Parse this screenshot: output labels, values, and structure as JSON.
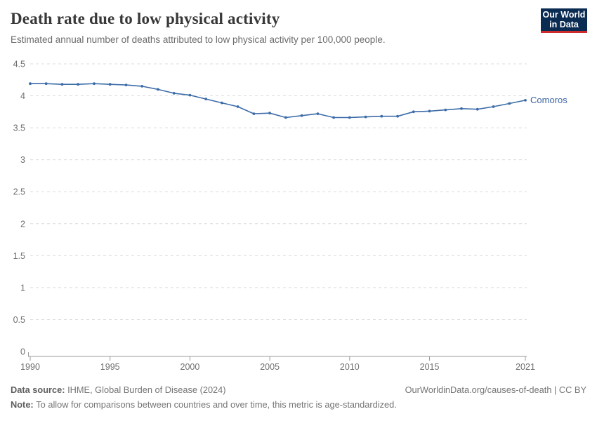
{
  "header": {
    "title": "Death rate due to low physical activity",
    "subtitle": "Estimated annual number of deaths attributed to low physical activity per 100,000 people.",
    "logo": {
      "line1": "Our World",
      "line2": "in Data"
    }
  },
  "colors": {
    "series": "#3c6ca8",
    "series_label": "#3d66a4",
    "grid": "#dcdcdc",
    "axis": "#999999",
    "tick_text": "#6e6e6e",
    "logo_bg": "#0a2b52",
    "logo_accent": "#ce2b2b"
  },
  "chart_data": {
    "type": "line",
    "title": "Death rate due to low physical activity",
    "xlabel": "",
    "ylabel": "",
    "xlim": [
      1990,
      2021
    ],
    "ylim": [
      0,
      4.5
    ],
    "x_ticks": [
      1990,
      1995,
      2000,
      2005,
      2010,
      2015,
      2021
    ],
    "y_ticks": [
      0,
      0.5,
      1,
      1.5,
      2,
      2.5,
      3,
      3.5,
      4,
      4.5
    ],
    "grid": "horizontal-dashed",
    "legend": "end-of-line-label",
    "x": [
      1990,
      1991,
      1992,
      1993,
      1994,
      1995,
      1996,
      1997,
      1998,
      1999,
      2000,
      2001,
      2002,
      2003,
      2004,
      2005,
      2006,
      2007,
      2008,
      2009,
      2010,
      2011,
      2012,
      2013,
      2014,
      2015,
      2016,
      2017,
      2018,
      2019,
      2020,
      2021
    ],
    "series": [
      {
        "name": "Comoros",
        "color": "#3c6ca8",
        "values": [
          4.19,
          4.19,
          4.18,
          4.18,
          4.19,
          4.18,
          4.17,
          4.15,
          4.1,
          4.04,
          4.01,
          3.95,
          3.89,
          3.83,
          3.72,
          3.73,
          3.66,
          3.69,
          3.72,
          3.66,
          3.66,
          3.67,
          3.68,
          3.68,
          3.75,
          3.76,
          3.78,
          3.8,
          3.79,
          3.83,
          3.88,
          3.93
        ]
      }
    ]
  },
  "footer": {
    "source_label": "Data source:",
    "source": "IHME, Global Burden of Disease (2024)",
    "note_label": "Note:",
    "note": "To allow for comparisons between countries and over time, this metric is age-standardized.",
    "credit": "OurWorldinData.org/causes-of-death | CC BY"
  }
}
